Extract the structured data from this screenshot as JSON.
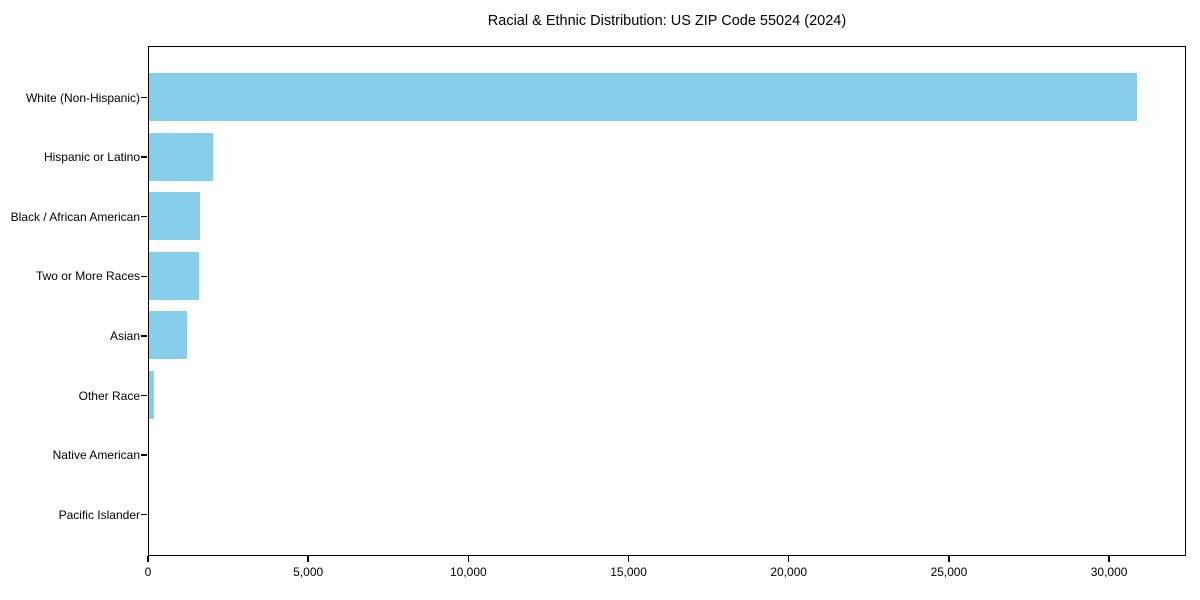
{
  "chart_data": {
    "type": "bar",
    "orientation": "horizontal",
    "title": "Racial & Ethnic Distribution: US ZIP Code 55024 (2024)",
    "categories": [
      "White (Non-Hispanic)",
      "Hispanic or Latino",
      "Black / African American",
      "Two or More Races",
      "Asian",
      "Other Race",
      "Native American",
      "Pacific Islander"
    ],
    "values": [
      30850,
      2000,
      1580,
      1570,
      1190,
      160,
      0,
      0
    ],
    "xlabel": "",
    "ylabel": "",
    "xlim": [
      0,
      32400
    ],
    "x_ticks": [
      0,
      5000,
      10000,
      15000,
      20000,
      25000,
      30000
    ],
    "x_tick_labels": [
      "0",
      "5,000",
      "10,000",
      "15,000",
      "20,000",
      "25,000",
      "30,000"
    ],
    "bar_color": "#87CEEB",
    "text_color": "#000000",
    "grid": false,
    "legend": null
  }
}
